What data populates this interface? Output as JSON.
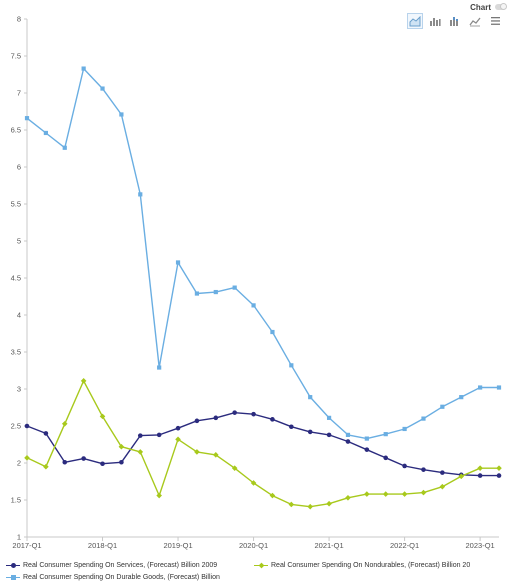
{
  "header": {
    "chart_label": "Chart",
    "tools": [
      {
        "name": "area-chart-icon",
        "active": true
      },
      {
        "name": "bar-chart-icon",
        "active": false
      },
      {
        "name": "stacked-bar-chart-icon",
        "active": false
      },
      {
        "name": "line-chart-icon",
        "active": false
      },
      {
        "name": "menu-icon",
        "active": false
      }
    ]
  },
  "chart_data": {
    "type": "line",
    "title": "",
    "xlabel": "",
    "ylabel": "",
    "ylim": [
      1,
      8
    ],
    "yticks": [
      "1",
      "1.5",
      "2",
      "2.5",
      "3",
      "3.5",
      "4",
      "4.5",
      "5",
      "5.5",
      "6",
      "6.5",
      "7",
      "7.5",
      "8"
    ],
    "x": [
      "2017-Q1",
      "2017-Q2",
      "2017-Q3",
      "2017-Q4",
      "2018-Q1",
      "2018-Q2",
      "2018-Q3",
      "2018-Q4",
      "2019-Q1",
      "2019-Q2",
      "2019-Q3",
      "2019-Q4",
      "2020-Q1",
      "2020-Q2",
      "2020-Q3",
      "2020-Q4",
      "2021-Q1",
      "2021-Q2",
      "2021-Q3",
      "2021-Q4",
      "2022-Q1",
      "2022-Q2",
      "2022-Q3",
      "2022-Q4",
      "2023-Q1",
      "2023-Q2"
    ],
    "xtick_labels": [
      {
        "label": "2017-Q1",
        "index": 0
      },
      {
        "label": "2018-Q1",
        "index": 4
      },
      {
        "label": "2019-Q1",
        "index": 8
      },
      {
        "label": "2020-Q1",
        "index": 12
      },
      {
        "label": "2021-Q1",
        "index": 16
      },
      {
        "label": "2022-Q1",
        "index": 20
      },
      {
        "label": "2023-Q1",
        "index": 24
      }
    ],
    "grid": false,
    "legend_position": "bottom-left",
    "series": [
      {
        "name": "Real Consumer Spending On Services, (Forecast) Billion 2009",
        "color": "#2b2b7e",
        "marker": "circle",
        "values": [
          2.5,
          2.4,
          2.01,
          2.06,
          1.99,
          2.01,
          2.37,
          2.38,
          2.47,
          2.57,
          2.61,
          2.68,
          2.66,
          2.59,
          2.49,
          2.42,
          2.38,
          2.29,
          2.18,
          2.07,
          1.96,
          1.91,
          1.87,
          1.84,
          1.83,
          1.83
        ]
      },
      {
        "name": "Real Consumer Spending On Nondurables, (Forecast) Billion 20",
        "color": "#a8c91c",
        "marker": "diamond",
        "values": [
          2.07,
          1.95,
          2.53,
          3.11,
          2.63,
          2.22,
          2.15,
          1.56,
          2.32,
          2.15,
          2.11,
          1.93,
          1.73,
          1.56,
          1.44,
          1.41,
          1.45,
          1.53,
          1.58,
          1.58,
          1.58,
          1.6,
          1.68,
          1.82,
          1.93,
          1.93
        ]
      },
      {
        "name": "Real Consumer Spending On Durable Goods, (Forecast) Billion",
        "color": "#6aaee2",
        "marker": "square",
        "values": [
          6.66,
          6.46,
          6.26,
          7.33,
          7.06,
          6.71,
          5.63,
          3.29,
          4.71,
          4.29,
          4.31,
          4.37,
          4.13,
          3.77,
          3.32,
          2.89,
          2.61,
          2.38,
          2.33,
          2.39,
          2.46,
          2.6,
          2.76,
          2.89,
          3.02,
          3.02
        ]
      }
    ]
  }
}
